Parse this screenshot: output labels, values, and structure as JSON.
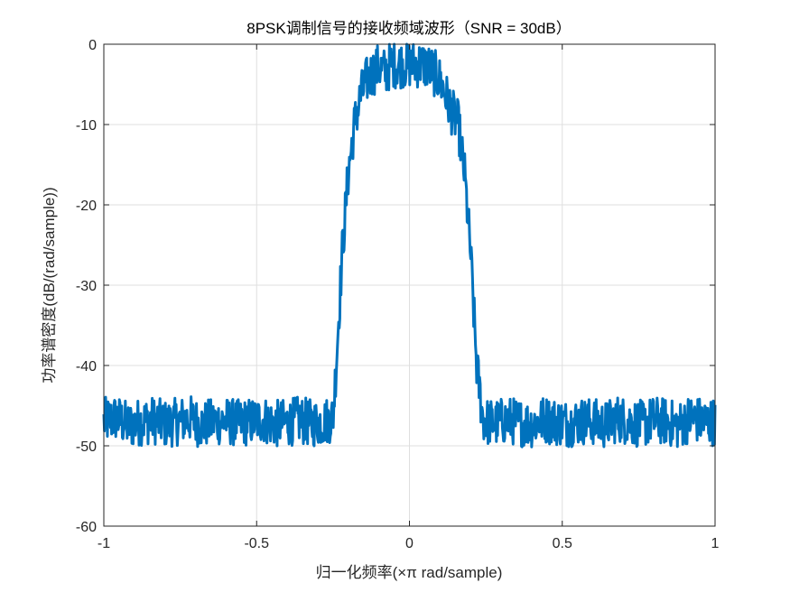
{
  "chart_data": {
    "type": "line",
    "title": "8PSK调制信号的接收频域波形（SNR = 30dB）",
    "xlabel": "归一化频率(×π rad/sample)",
    "ylabel": "功率谱密度(dB/(rad/sample))",
    "xlim": [
      -1,
      1
    ],
    "ylim": [
      -60,
      0
    ],
    "xticks": [
      -1,
      -0.5,
      0,
      0.5,
      1
    ],
    "xtick_labels": [
      "-1",
      "-0.5",
      "0",
      "0.5",
      "1"
    ],
    "yticks": [
      0,
      -10,
      -20,
      -30,
      -40,
      -50,
      -60
    ],
    "ytick_labels": [
      "0",
      "-10",
      "-20",
      "-30",
      "-40",
      "-50",
      "-60"
    ],
    "grid": true,
    "line_color": "#0072BD",
    "series": [
      {
        "name": "",
        "x": [
          -1.0,
          -0.96,
          -0.92,
          -0.88,
          -0.84,
          -0.8,
          -0.76,
          -0.72,
          -0.68,
          -0.64,
          -0.6,
          -0.56,
          -0.52,
          -0.48,
          -0.44,
          -0.4,
          -0.36,
          -0.32,
          -0.28,
          -0.25,
          -0.24,
          -0.22,
          -0.2,
          -0.18,
          -0.16,
          -0.14,
          -0.12,
          -0.1,
          -0.08,
          -0.06,
          -0.04,
          -0.02,
          0.0,
          0.02,
          0.04,
          0.06,
          0.08,
          0.1,
          0.12,
          0.14,
          0.16,
          0.18,
          0.2,
          0.22,
          0.24,
          0.25,
          0.28,
          0.32,
          0.36,
          0.4,
          0.44,
          0.48,
          0.52,
          0.56,
          0.6,
          0.64,
          0.68,
          0.72,
          0.76,
          0.8,
          0.84,
          0.88,
          0.92,
          0.96,
          1.0
        ],
        "values": [
          -47,
          -46.5,
          -47.5,
          -47,
          -46.8,
          -47.3,
          -47,
          -46.6,
          -47.4,
          -47,
          -46.9,
          -47.2,
          -47,
          -46.7,
          -47.3,
          -47.1,
          -46.8,
          -47.2,
          -47,
          -46.5,
          -40,
          -26,
          -16,
          -10,
          -6.5,
          -4.5,
          -3.5,
          -2.8,
          -3.5,
          -2.5,
          -2.5,
          -2.5,
          -2.5,
          -2.5,
          -2.5,
          -2.8,
          -3.5,
          -4.5,
          -6.5,
          -8.5,
          -10,
          -16,
          -26,
          -40,
          -46.5,
          -47,
          -47.2,
          -46.8,
          -47.1,
          -47.3,
          -46.7,
          -47,
          -47.2,
          -46.9,
          -47,
          -47.4,
          -46.6,
          -47,
          -47.3,
          -46.8,
          -47,
          -47.5,
          -46.5,
          -47,
          -47
        ],
        "noise_amplitude_db": 3
      }
    ]
  }
}
